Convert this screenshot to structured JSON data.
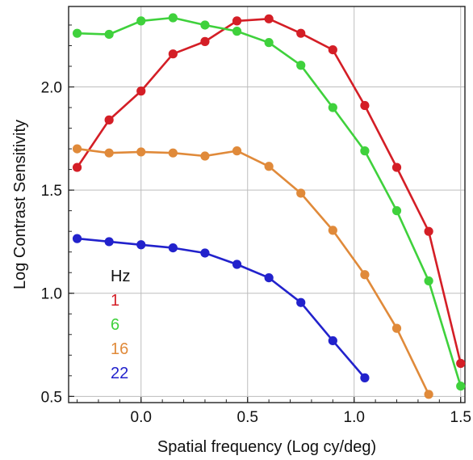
{
  "chart_data": {
    "type": "line",
    "xlabel": "Spatial frequency (Log cy/deg)",
    "ylabel": "Log Contrast Sensitivity",
    "xlim": [
      -0.34,
      1.52
    ],
    "ylim": [
      0.47,
      2.39
    ],
    "xticks": [
      0.0,
      0.5,
      1.0,
      1.5
    ],
    "xtick_labels": [
      "0.0",
      "0.5",
      "1.0",
      "1.5"
    ],
    "yticks": [
      0.5,
      1.0,
      1.5,
      2.0
    ],
    "ytick_labels": [
      "0.5",
      "1.0",
      "1.5",
      "2.0"
    ],
    "grid": true,
    "legend": {
      "title": "Hz",
      "placement": "lower-left",
      "entries": [
        "1",
        "6",
        "16",
        "22"
      ]
    },
    "series": [
      {
        "name": "1",
        "color": "#d41e26",
        "x": [
          -0.3,
          -0.15,
          0.0,
          0.15,
          0.3,
          0.45,
          0.6,
          0.75,
          0.9,
          1.05,
          1.2,
          1.35,
          1.5
        ],
        "y": [
          1.61,
          1.84,
          1.98,
          2.16,
          2.22,
          2.32,
          2.33,
          2.26,
          2.18,
          1.91,
          1.61,
          1.3,
          0.66
        ]
      },
      {
        "name": "6",
        "color": "#3fd13c",
        "x": [
          -0.3,
          -0.15,
          0.0,
          0.15,
          0.3,
          0.45,
          0.6,
          0.75,
          0.9,
          1.05,
          1.2,
          1.35,
          1.5
        ],
        "y": [
          2.26,
          2.255,
          2.32,
          2.335,
          2.3,
          2.27,
          2.215,
          2.105,
          1.9,
          1.69,
          1.4,
          1.06,
          0.55
        ]
      },
      {
        "name": "16",
        "color": "#e08a3a",
        "x": [
          -0.3,
          -0.15,
          0.0,
          0.15,
          0.3,
          0.45,
          0.6,
          0.75,
          0.9,
          1.05,
          1.2,
          1.35
        ],
        "y": [
          1.7,
          1.68,
          1.685,
          1.68,
          1.665,
          1.69,
          1.615,
          1.485,
          1.305,
          1.09,
          0.83,
          0.51
        ]
      },
      {
        "name": "22",
        "color": "#2222cc",
        "x": [
          -0.3,
          -0.15,
          0.0,
          0.15,
          0.3,
          0.45,
          0.6,
          0.75,
          0.9,
          1.05
        ],
        "y": [
          1.265,
          1.25,
          1.235,
          1.22,
          1.195,
          1.14,
          1.075,
          0.955,
          0.77,
          0.59
        ]
      }
    ]
  }
}
